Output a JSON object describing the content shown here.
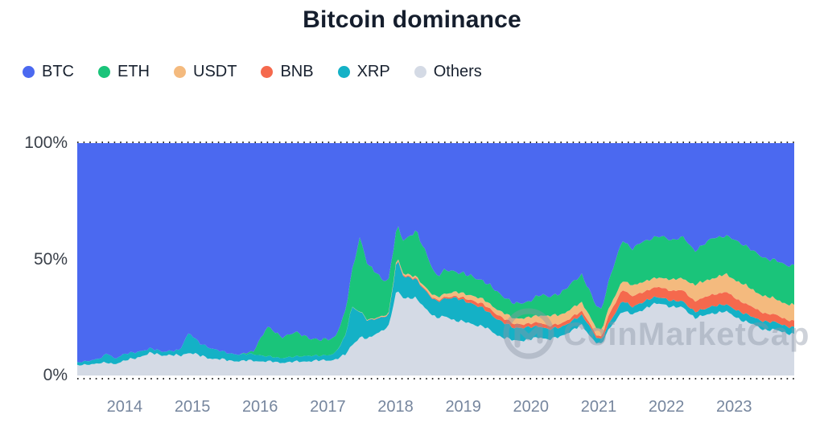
{
  "title": "Bitcoin dominance",
  "legend": {
    "items": [
      {
        "label": "BTC",
        "color": "#4b69f0"
      },
      {
        "label": "ETH",
        "color": "#1ac47a"
      },
      {
        "label": "USDT",
        "color": "#f4ba7e"
      },
      {
        "label": "BNB",
        "color": "#f5694d"
      },
      {
        "label": "XRP",
        "color": "#14b1c6"
      },
      {
        "label": "Others",
        "color": "#d4dae5"
      }
    ]
  },
  "watermark": {
    "text": "CoinMarketCap"
  },
  "axes": {
    "y_ticks": [
      "100%",
      "50%",
      "0%"
    ],
    "y_tick_values": [
      100,
      50,
      0
    ],
    "x_ticks": [
      "2014",
      "2015",
      "2016",
      "2017",
      "2018",
      "2019",
      "2020",
      "2021",
      "2022",
      "2023"
    ]
  },
  "chart_data": {
    "type": "area",
    "stacked": true,
    "title": "Bitcoin dominance",
    "unit": "%",
    "ylim": [
      0,
      100
    ],
    "grid": "dotted lines at 0% and 100% only",
    "legend_position": "top-left",
    "x_years": [
      2013.3,
      2013.5,
      2013.65,
      2013.75,
      2013.85,
      2014.0,
      2014.2,
      2014.4,
      2014.6,
      2014.8,
      2014.95,
      2015.1,
      2015.3,
      2015.5,
      2015.7,
      2015.9,
      2016.1,
      2016.3,
      2016.5,
      2016.7,
      2016.9,
      2017.1,
      2017.25,
      2017.35,
      2017.47,
      2017.6,
      2017.7,
      2017.8,
      2017.9,
      2018.02,
      2018.12,
      2018.3,
      2018.5,
      2018.6,
      2018.75,
      2018.9,
      2019.1,
      2019.3,
      2019.5,
      2019.75,
      2019.95,
      2020.15,
      2020.25,
      2020.45,
      2020.65,
      2020.75,
      2020.85,
      2020.95,
      2021.04,
      2021.15,
      2021.35,
      2021.5,
      2021.65,
      2021.8,
      2021.95,
      2022.1,
      2022.25,
      2022.42,
      2022.55,
      2022.7,
      2022.87,
      2023.0,
      2023.15,
      2023.3,
      2023.45,
      2023.6,
      2023.75,
      2023.9
    ],
    "series": [
      {
        "name": "Others",
        "color": "#d4dae5",
        "values": [
          4.2,
          5.0,
          5.2,
          5.5,
          5.0,
          6.2,
          8.0,
          9.5,
          8.8,
          8.4,
          10.0,
          8.5,
          7.3,
          6.6,
          6.2,
          6.4,
          6.0,
          5.6,
          5.8,
          6.2,
          6.4,
          6.8,
          8.5,
          13.0,
          16.5,
          15.5,
          18.0,
          19.5,
          21.0,
          37.0,
          33.5,
          33.0,
          27.5,
          24.5,
          25.5,
          23.5,
          22.5,
          21.0,
          17.5,
          14.8,
          15.5,
          16.2,
          15.8,
          16.5,
          20.5,
          21.5,
          17.5,
          14.8,
          13.4,
          19.5,
          28.0,
          26.0,
          28.5,
          30.5,
          30.8,
          29.5,
          29.0,
          25.0,
          25.5,
          27.0,
          27.5,
          25.5,
          23.5,
          21.5,
          19.8,
          19.5,
          18.5,
          17.8
        ]
      },
      {
        "name": "XRP",
        "color": "#14b1c6",
        "values": [
          1.3,
          1.6,
          2.2,
          4.3,
          2.2,
          3.0,
          2.4,
          1.9,
          1.6,
          2.2,
          8.5,
          5.5,
          4.2,
          3.2,
          2.8,
          2.9,
          2.2,
          2.0,
          2.2,
          2.4,
          2.0,
          2.6,
          7.5,
          16.5,
          11.0,
          8.0,
          6.5,
          5.5,
          5.0,
          13.5,
          9.0,
          8.5,
          7.0,
          7.2,
          7.8,
          9.8,
          8.8,
          7.8,
          6.8,
          5.6,
          5.3,
          4.8,
          4.3,
          4.1,
          4.0,
          4.2,
          4.6,
          2.4,
          1.9,
          2.6,
          4.4,
          3.3,
          3.3,
          2.9,
          2.7,
          2.6,
          2.7,
          2.6,
          2.7,
          3.2,
          3.0,
          3.2,
          3.3,
          3.2,
          3.6,
          3.4,
          3.0,
          2.8
        ]
      },
      {
        "name": "BNB",
        "color": "#f5694d",
        "values": [
          0,
          0,
          0,
          0,
          0,
          0,
          0,
          0,
          0,
          0,
          0,
          0,
          0,
          0,
          0,
          0,
          0,
          0,
          0,
          0,
          0,
          0,
          0,
          0,
          0,
          0.1,
          0.2,
          0.2,
          0.2,
          0.3,
          0.4,
          0.4,
          0.5,
          0.5,
          0.6,
          0.7,
          1.4,
          1.8,
          2.0,
          1.7,
          1.5,
          1.7,
          1.5,
          1.5,
          1.8,
          1.7,
          1.3,
          1.1,
          1.1,
          3.6,
          5.0,
          4.4,
          4.4,
          4.1,
          4.3,
          4.4,
          4.6,
          4.7,
          4.9,
          5.0,
          5.4,
          4.9,
          4.6,
          4.0,
          3.6,
          3.2,
          2.9,
          3.0
        ]
      },
      {
        "name": "USDT",
        "color": "#f4ba7e",
        "values": [
          0,
          0,
          0,
          0,
          0,
          0,
          0,
          0,
          0,
          0,
          0,
          0,
          0,
          0,
          0,
          0,
          0,
          0,
          0,
          0,
          0,
          0,
          0.1,
          0.1,
          0.1,
          0.2,
          0.2,
          0.3,
          0.4,
          0.6,
          0.7,
          0.8,
          1.1,
          1.4,
          1.5,
          1.9,
          2.0,
          2.1,
          2.2,
          2.4,
          2.6,
          3.2,
          4.2,
          3.9,
          3.7,
          3.7,
          3.3,
          3.0,
          2.8,
          3.0,
          3.6,
          4.8,
          4.3,
          4.0,
          4.3,
          4.8,
          5.3,
          6.8,
          7.2,
          6.9,
          7.6,
          7.8,
          7.8,
          7.5,
          7.2,
          6.9,
          6.7,
          6.6
        ]
      },
      {
        "name": "ETH",
        "color": "#1ac47a",
        "values": [
          0,
          0,
          0,
          0,
          0,
          0,
          0,
          0,
          0,
          0,
          0,
          0,
          0,
          0,
          0,
          1.0,
          13.0,
          9.0,
          10.5,
          8.0,
          6.6,
          7.0,
          10.0,
          14.0,
          32.0,
          23.0,
          20.0,
          16.0,
          14.5,
          13.0,
          14.5,
          19.5,
          13.5,
          9.0,
          10.0,
          8.8,
          8.2,
          8.0,
          7.6,
          6.3,
          6.8,
          8.8,
          8.4,
          9.2,
          11.5,
          12.0,
          10.5,
          9.7,
          9.2,
          11.5,
          17.8,
          15.5,
          17.5,
          17.6,
          17.6,
          17.2,
          17.6,
          14.8,
          15.8,
          17.5,
          16.5,
          17.0,
          17.2,
          16.8,
          16.4,
          16.6,
          16.5,
          17.3
        ]
      },
      {
        "name": "BTC",
        "color": "#4b69f0",
        "values": [
          94.5,
          93.4,
          92.6,
          90.2,
          92.8,
          90.8,
          89.6,
          88.6,
          89.6,
          89.4,
          81.5,
          86.0,
          88.5,
          90.2,
          91.0,
          89.7,
          78.8,
          83.4,
          81.5,
          83.4,
          85.0,
          83.6,
          73.9,
          56.4,
          40.4,
          53.2,
          55.1,
          58.5,
          58.9,
          35.6,
          41.9,
          37.8,
          50.4,
          57.4,
          54.6,
          55.3,
          57.1,
          59.3,
          63.9,
          69.2,
          68.3,
          65.3,
          65.8,
          64.8,
          58.5,
          56.9,
          62.8,
          69.0,
          71.6,
          59.8,
          41.2,
          46.0,
          42.0,
          40.9,
          40.3,
          41.5,
          40.8,
          46.1,
          43.9,
          40.4,
          40.0,
          41.6,
          43.6,
          47.0,
          49.4,
          50.4,
          52.4,
          52.5
        ]
      }
    ]
  }
}
